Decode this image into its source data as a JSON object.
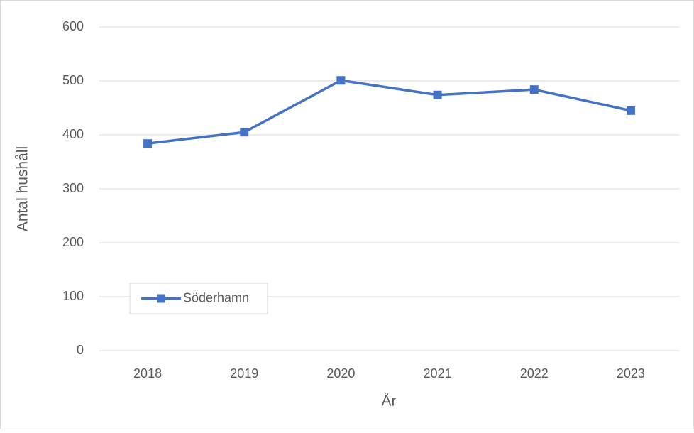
{
  "chart_data": {
    "type": "line",
    "xlabel": "År",
    "ylabel": "Antal hushåll",
    "categories": [
      "2018",
      "2019",
      "2020",
      "2021",
      "2022",
      "2023"
    ],
    "series": [
      {
        "name": "Söderhamn",
        "color": "#4472c4",
        "values": [
          384,
          405,
          501,
          474,
          484,
          445
        ]
      }
    ],
    "ylim": [
      0,
      600
    ],
    "yticks": [
      0,
      100,
      200,
      300,
      400,
      500,
      600
    ],
    "grid": true,
    "legend": "lower left"
  }
}
